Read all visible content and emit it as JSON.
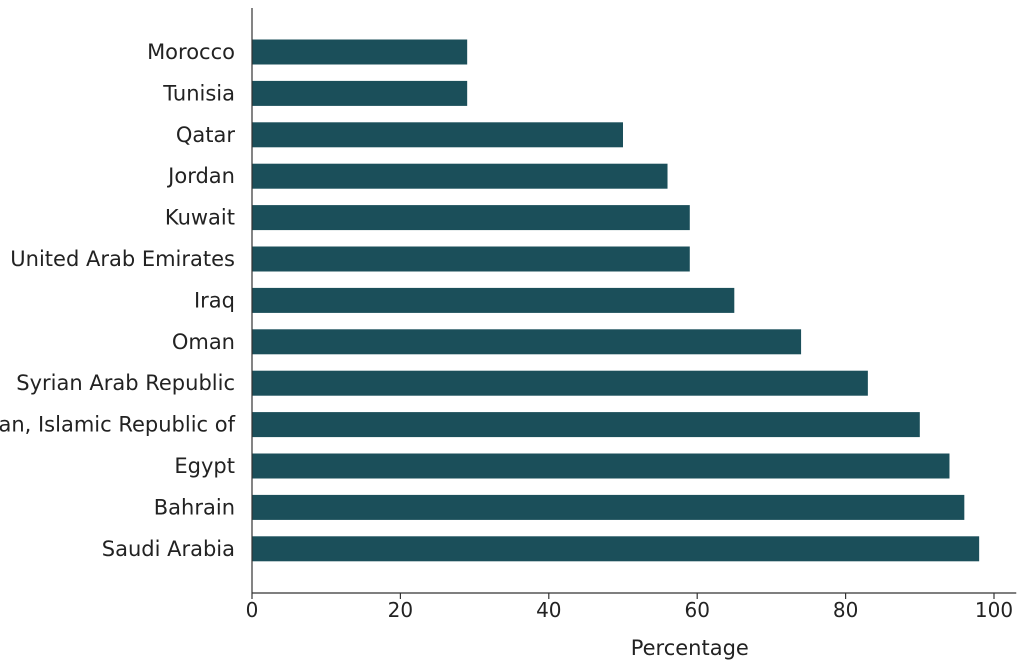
{
  "chart_data": {
    "type": "bar",
    "orientation": "horizontal",
    "categories": [
      "Morocco",
      "Tunisia",
      "Qatar",
      "Jordan",
      "Kuwait",
      "United Arab Emirates",
      "Iraq",
      "Oman",
      "Syrian Arab Republic",
      "Iran, Islamic Republic of",
      "Egypt",
      "Bahrain",
      "Saudi Arabia"
    ],
    "values": [
      29,
      29,
      50,
      56,
      59,
      59,
      65,
      74,
      83,
      90,
      94,
      96,
      98
    ],
    "title": "",
    "xlabel": "Percentage",
    "ylabel": "",
    "xlim": [
      0,
      103
    ],
    "xticks": [
      0,
      20,
      40,
      60,
      80,
      100
    ],
    "xtick_labels": [
      "0",
      "20",
      "40",
      "60",
      "80",
      "100"
    ],
    "grid": false,
    "bar_color": "#1b4f5a"
  }
}
